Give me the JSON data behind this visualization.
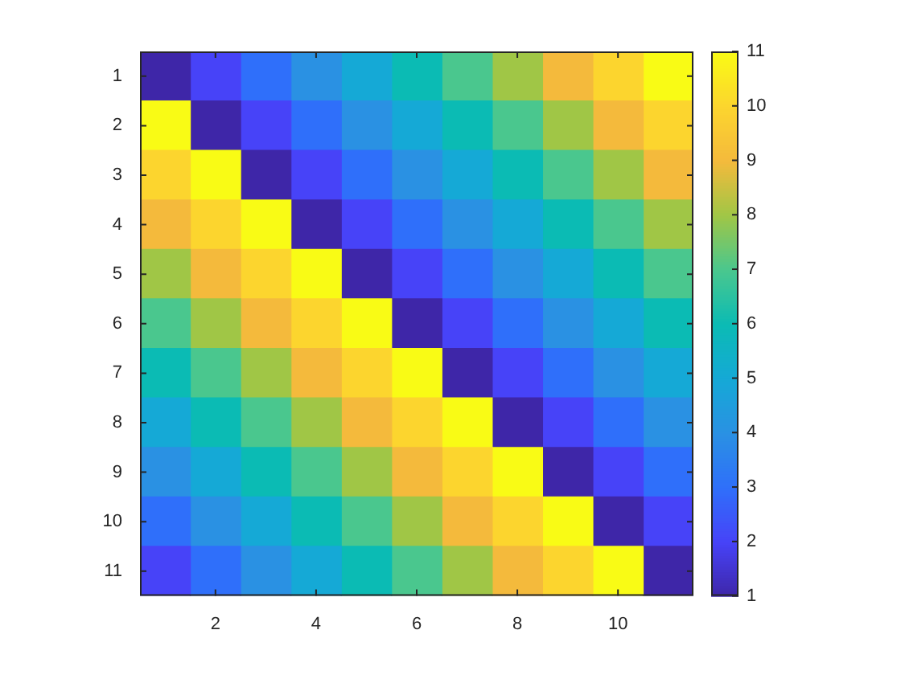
{
  "chart_data": {
    "type": "heatmap",
    "categories": [
      null,
      "2",
      null,
      "4",
      null,
      "6",
      null,
      "8",
      null,
      "10",
      null
    ],
    "y_categories": [
      "1",
      "2",
      "3",
      "4",
      "5",
      "6",
      "7",
      "8",
      "9",
      "10",
      "11"
    ],
    "cells": [
      [
        1,
        2,
        3,
        4,
        5,
        6,
        7,
        8,
        9,
        10,
        11
      ],
      [
        11,
        1,
        2,
        3,
        4,
        5,
        6,
        7,
        8,
        9,
        10
      ],
      [
        10,
        11,
        1,
        2,
        3,
        4,
        5,
        6,
        7,
        8,
        9
      ],
      [
        9,
        10,
        11,
        1,
        2,
        3,
        4,
        5,
        6,
        7,
        8
      ],
      [
        8,
        9,
        10,
        11,
        1,
        2,
        3,
        4,
        5,
        6,
        7
      ],
      [
        7,
        8,
        9,
        10,
        11,
        1,
        2,
        3,
        4,
        5,
        6
      ],
      [
        6,
        7,
        8,
        9,
        10,
        11,
        1,
        2,
        3,
        4,
        5
      ],
      [
        5,
        6,
        7,
        8,
        9,
        10,
        11,
        1,
        2,
        3,
        4
      ],
      [
        4,
        5,
        6,
        7,
        8,
        9,
        10,
        11,
        1,
        2,
        3
      ],
      [
        3,
        4,
        5,
        6,
        7,
        8,
        9,
        10,
        11,
        1,
        2
      ],
      [
        2,
        3,
        4,
        5,
        6,
        7,
        8,
        9,
        10,
        11,
        1
      ]
    ],
    "clim": [
      1,
      11
    ],
    "cticks": [
      1,
      2,
      3,
      4,
      5,
      6,
      7,
      8,
      9,
      10,
      11
    ]
  }
}
